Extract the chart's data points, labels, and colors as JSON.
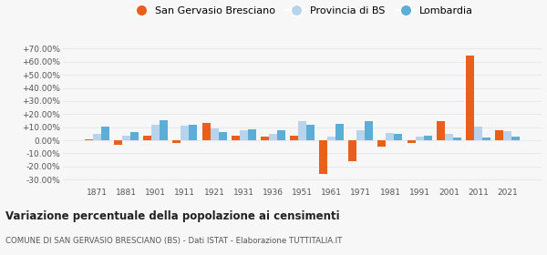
{
  "years": [
    1871,
    1881,
    1901,
    1911,
    1921,
    1931,
    1936,
    1951,
    1961,
    1971,
    1981,
    1991,
    2001,
    2011,
    2021
  ],
  "san_gervasio": [
    1.0,
    -3.5,
    3.5,
    -2.0,
    13.0,
    3.5,
    3.0,
    3.5,
    -26.0,
    -16.0,
    -5.0,
    -2.0,
    15.0,
    65.0,
    8.0
  ],
  "provincia_bs": [
    5.0,
    3.5,
    12.0,
    11.5,
    9.0,
    8.0,
    5.0,
    14.5,
    3.0,
    8.0,
    5.5,
    3.0,
    5.0,
    10.5,
    7.0
  ],
  "lombardia": [
    10.5,
    6.0,
    15.5,
    12.0,
    6.5,
    8.5,
    8.0,
    12.0,
    12.5,
    15.0,
    5.0,
    3.5,
    2.0,
    2.5,
    3.0
  ],
  "color_san_gervasio": "#e8601c",
  "color_provincia": "#b8d4ed",
  "color_lombardia": "#5bafd6",
  "title": "Variazione percentuale della popolazione ai censimenti",
  "subtitle": "COMUNE DI SAN GERVASIO BRESCIANO (BS) - Dati ISTAT - Elaborazione TUTTITALIA.IT",
  "legend_labels": [
    "San Gervasio Bresciano",
    "Provincia di BS",
    "Lombardia"
  ],
  "yticks": [
    -30,
    -20,
    -10,
    0,
    10,
    20,
    30,
    40,
    50,
    60,
    70
  ],
  "ytick_labels": [
    "-30.00%",
    "-20.00%",
    "-10.00%",
    "0.00%",
    "+10.00%",
    "+20.00%",
    "+30.00%",
    "+40.00%",
    "+50.00%",
    "+60.00%",
    "+70.00%"
  ],
  "ylim": [
    -35,
    78
  ],
  "background_color": "#f7f7f7",
  "grid_color": "#e8e8e8",
  "bar_width": 0.28
}
